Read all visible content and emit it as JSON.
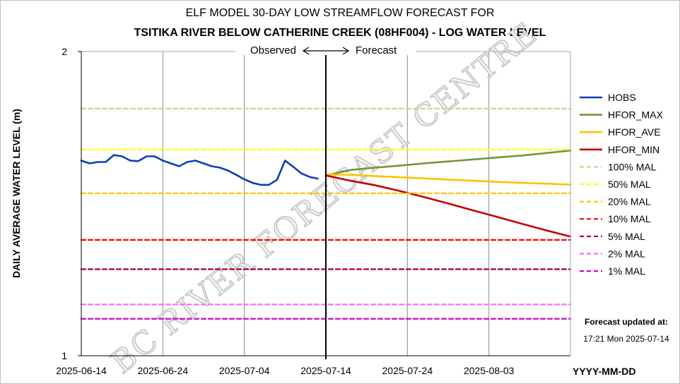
{
  "chart_data": {
    "type": "line",
    "title": "ELF MODEL 30-DAY LOW STREAMFLOW FORECAST FOR",
    "subtitle": "TSITIKA RIVER BELOW CATHERINE CREEK (08HF004) - LOG WATER LEVEL",
    "ylabel": "DAILY AVERAGE WATER LEVEL (m)",
    "xlabel": "YYYY-MM-DD",
    "y_scale": "log",
    "ylim": [
      1,
      2
    ],
    "y_ticks": [
      "1",
      "2"
    ],
    "x_range": [
      "2025-06-14",
      "2025-08-13"
    ],
    "x_ticks": [
      "2025-06-14",
      "2025-06-24",
      "2025-07-04",
      "2025-07-14",
      "2025-07-24",
      "2025-08-03"
    ],
    "forecast_start": "2025-07-14",
    "observed_label": "Observed",
    "forecast_label": "Forecast",
    "grid": "vertical",
    "legend_position": "right",
    "series": [
      {
        "name": "HOBS",
        "color": "#0b3fb5",
        "dash": "solid",
        "x": [
          "2025-06-14",
          "2025-06-15",
          "2025-06-16",
          "2025-06-17",
          "2025-06-18",
          "2025-06-19",
          "2025-06-20",
          "2025-06-21",
          "2025-06-22",
          "2025-06-23",
          "2025-06-24",
          "2025-06-25",
          "2025-06-26",
          "2025-06-27",
          "2025-06-28",
          "2025-06-29",
          "2025-06-30",
          "2025-07-01",
          "2025-07-02",
          "2025-07-03",
          "2025-07-04",
          "2025-07-05",
          "2025-07-06",
          "2025-07-07",
          "2025-07-08",
          "2025-07-09",
          "2025-07-10",
          "2025-07-11",
          "2025-07-12",
          "2025-07-13"
        ],
        "y": [
          1.56,
          1.55,
          1.555,
          1.555,
          1.58,
          1.575,
          1.56,
          1.558,
          1.575,
          1.575,
          1.56,
          1.55,
          1.54,
          1.555,
          1.56,
          1.55,
          1.54,
          1.535,
          1.525,
          1.51,
          1.495,
          1.483,
          1.476,
          1.476,
          1.493,
          1.56,
          1.538,
          1.515,
          1.503,
          1.497
        ]
      },
      {
        "name": "HFOR_MAX",
        "color": "#77933c",
        "dash": "solid",
        "x": [
          "2025-07-14",
          "2025-07-17",
          "2025-07-20",
          "2025-07-23",
          "2025-07-26",
          "2025-07-29",
          "2025-08-01",
          "2025-08-04",
          "2025-08-07",
          "2025-08-10",
          "2025-08-13"
        ],
        "y": [
          1.508,
          1.527,
          1.535,
          1.542,
          1.55,
          1.557,
          1.564,
          1.571,
          1.578,
          1.587,
          1.596
        ]
      },
      {
        "name": "HFOR_AVE",
        "color": "#ffc000",
        "dash": "solid",
        "x": [
          "2025-07-14",
          "2025-07-17",
          "2025-07-20",
          "2025-07-23",
          "2025-07-26",
          "2025-07-29",
          "2025-08-01",
          "2025-08-04",
          "2025-08-07",
          "2025-08-10",
          "2025-08-13"
        ],
        "y": [
          1.512,
          1.51,
          1.506,
          1.502,
          1.498,
          1.494,
          1.49,
          1.486,
          1.483,
          1.48,
          1.477
        ]
      },
      {
        "name": "HFOR_MIN",
        "color": "#c00000",
        "dash": "solid",
        "x": [
          "2025-07-14",
          "2025-07-17",
          "2025-07-20",
          "2025-07-23",
          "2025-07-26",
          "2025-07-29",
          "2025-08-01",
          "2025-08-04",
          "2025-08-07",
          "2025-08-10",
          "2025-08-13"
        ],
        "y": [
          1.508,
          1.49,
          1.475,
          1.456,
          1.436,
          1.415,
          1.393,
          1.372,
          1.351,
          1.331,
          1.312
        ]
      },
      {
        "name": "100% MAL",
        "color": "#c4d79b",
        "dash": "dashed",
        "x": [
          "2025-06-14",
          "2025-08-13"
        ],
        "y": [
          1.756,
          1.756
        ]
      },
      {
        "name": "50% MAL",
        "color": "#ffff00",
        "dash": "dashed",
        "x": [
          "2025-06-14",
          "2025-08-13"
        ],
        "y": [
          1.6,
          1.6
        ]
      },
      {
        "name": "20% MAL",
        "color": "#ffc000",
        "dash": "dashed",
        "x": [
          "2025-06-14",
          "2025-08-13"
        ],
        "y": [
          1.448,
          1.448
        ]
      },
      {
        "name": "10% MAL",
        "color": "#ff0000",
        "dash": "dashed",
        "x": [
          "2025-06-14",
          "2025-08-13"
        ],
        "y": [
          1.302,
          1.302
        ]
      },
      {
        "name": "5% MAL",
        "color": "#a50021",
        "dash": "dashed",
        "x": [
          "2025-06-14",
          "2025-08-13"
        ],
        "y": [
          1.218,
          1.218
        ]
      },
      {
        "name": "2% MAL",
        "color": "#ff66ff",
        "dash": "dashed",
        "x": [
          "2025-06-14",
          "2025-08-13"
        ],
        "y": [
          1.124,
          1.124
        ]
      },
      {
        "name": "1% MAL",
        "color": "#cc00cc",
        "dash": "dashed",
        "x": [
          "2025-06-14",
          "2025-08-13"
        ],
        "y": [
          1.088,
          1.088
        ]
      }
    ]
  },
  "note": {
    "heading": "Forecast updated at:",
    "timestamp": "17:21 Mon 2025-07-14"
  },
  "watermark": "BC RIVER FORECAST CENTRE"
}
